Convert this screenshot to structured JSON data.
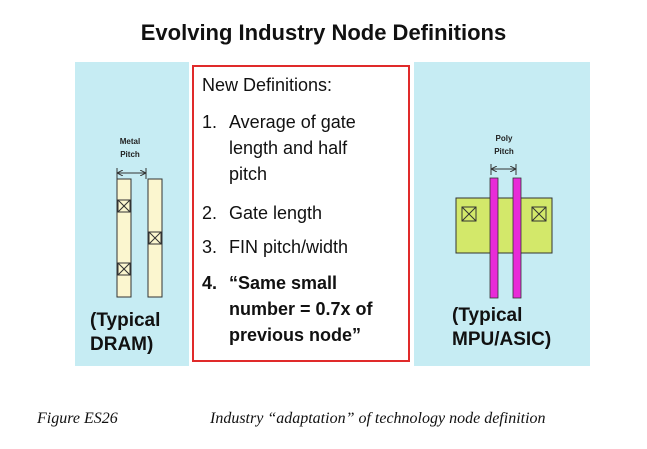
{
  "title": "Evolving Industry Node Definitions",
  "left_panel": {
    "label_line1": "Metal",
    "label_line2": "Pitch",
    "caption_line1": "(Typical",
    "caption_line2": "DRAM)",
    "colors": {
      "background": "#c6ecf3",
      "line_fill": "#fbf6cf",
      "stroke": "#333333"
    }
  },
  "definitions": {
    "heading": "New Definitions:",
    "items": [
      {
        "num": "1.",
        "lines": [
          "Average of gate",
          "length and half",
          "pitch"
        ]
      },
      {
        "num": "2.",
        "lines": [
          "Gate length"
        ]
      },
      {
        "num": "3.",
        "lines": [
          "FIN pitch/width"
        ]
      },
      {
        "num": "4.",
        "lines": [
          "“Same small",
          "number = 0.7x of",
          "previous node”"
        ]
      }
    ],
    "border_color": "#e02a2a"
  },
  "right_panel": {
    "label_line1": "Poly",
    "label_line2": "Pitch",
    "caption_line1": "(Typical",
    "caption_line2": "MPU/ASIC)",
    "colors": {
      "background": "#c6ecf3",
      "active_fill": "#d3e86a",
      "poly_fill": "#e82bd8",
      "stroke": "#333333"
    }
  },
  "figure": {
    "label": "Figure ES26",
    "caption": "Industry “adaptation” of technology node definition"
  }
}
